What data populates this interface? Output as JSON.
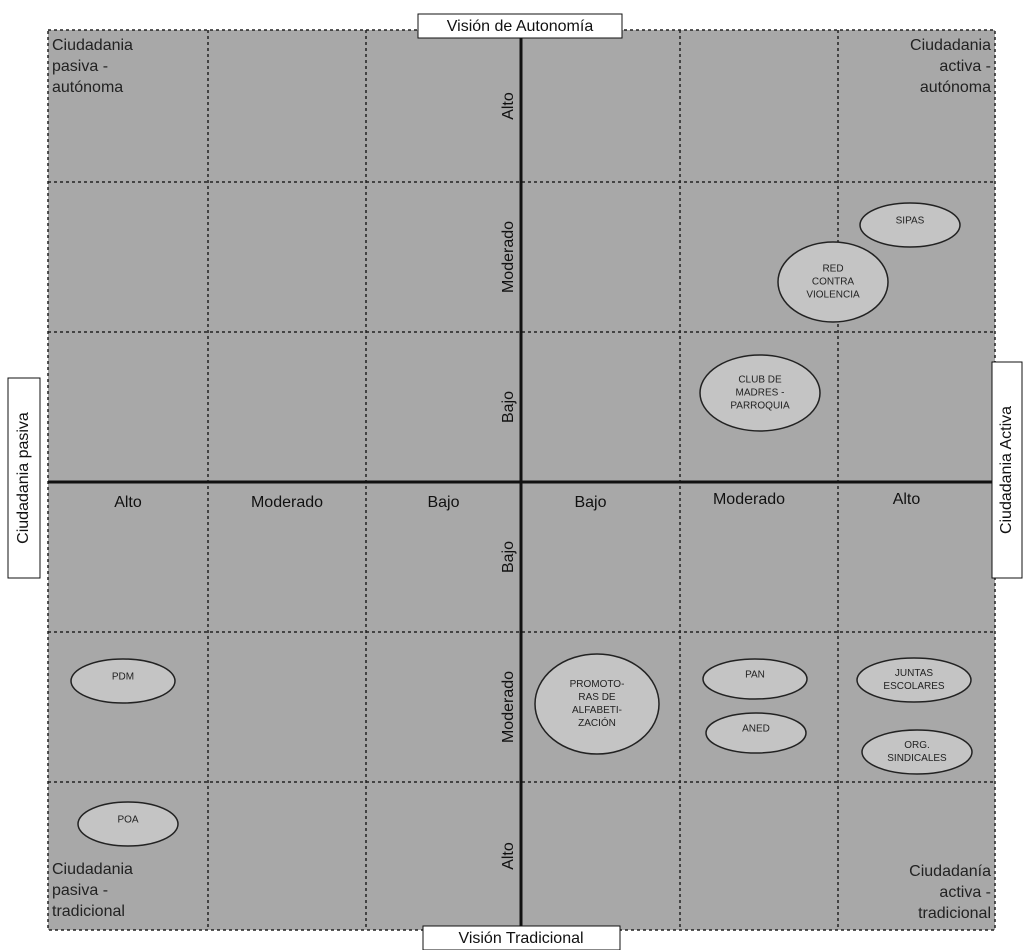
{
  "axes": {
    "top": "Visión de Autonomía",
    "bottom": "Visión Tradicional",
    "left": "Ciudadania pasiva",
    "right": "Ciudadania Activa"
  },
  "quadrants": {
    "top_left": [
      "Ciudadania",
      "pasiva -",
      "autónoma"
    ],
    "top_right": [
      "Ciudadania",
      "activa -",
      "autónoma"
    ],
    "bottom_left": [
      "Ciudadania",
      "pasiva -",
      "tradicional"
    ],
    "bottom_right": [
      "Ciudadanía",
      "activa -",
      "tradicional"
    ]
  },
  "horizontal_scale": [
    "Alto",
    "Moderado",
    "Bajo",
    "Bajo",
    "Moderado",
    "Alto"
  ],
  "vertical_scale": [
    "Alto",
    "Moderado",
    "Bajo",
    "Bajo",
    "Moderado",
    "Alto"
  ],
  "nodes": [
    {
      "lines": [
        "SIPAS"
      ]
    },
    {
      "lines": [
        "RED",
        "CONTRA",
        "VIOLENCIA"
      ]
    },
    {
      "lines": [
        "CLUB DE",
        "MADRES -",
        "PARROQUIA"
      ]
    },
    {
      "lines": [
        "PDM"
      ]
    },
    {
      "lines": [
        "POA"
      ]
    },
    {
      "lines": [
        "PROMOTO-",
        "RAS DE",
        "ALFABETI-",
        "ZACIÓN"
      ]
    },
    {
      "lines": [
        "PAN"
      ]
    },
    {
      "lines": [
        "ANED"
      ]
    },
    {
      "lines": [
        "JUNTAS",
        "ESCOLARES"
      ]
    },
    {
      "lines": [
        "ORG.",
        "SINDICALES"
      ]
    }
  ]
}
